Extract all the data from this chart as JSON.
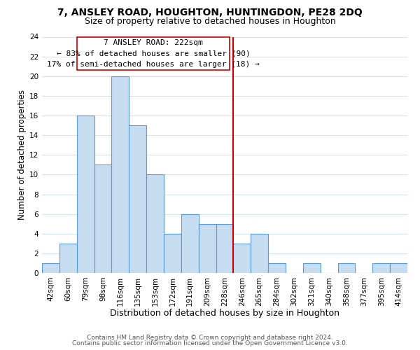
{
  "title": "7, ANSLEY ROAD, HOUGHTON, HUNTINGDON, PE28 2DQ",
  "subtitle": "Size of property relative to detached houses in Houghton",
  "xlabel": "Distribution of detached houses by size in Houghton",
  "ylabel": "Number of detached properties",
  "bar_labels": [
    "42sqm",
    "60sqm",
    "79sqm",
    "98sqm",
    "116sqm",
    "135sqm",
    "153sqm",
    "172sqm",
    "191sqm",
    "209sqm",
    "228sqm",
    "246sqm",
    "265sqm",
    "284sqm",
    "302sqm",
    "321sqm",
    "340sqm",
    "358sqm",
    "377sqm",
    "395sqm",
    "414sqm"
  ],
  "bar_values": [
    1,
    3,
    16,
    11,
    20,
    15,
    10,
    4,
    6,
    5,
    5,
    3,
    4,
    1,
    0,
    1,
    0,
    1,
    0,
    1,
    1
  ],
  "bar_color": "#c6dcf0",
  "bar_edge_color": "#5b9bd5",
  "grid_color": "#d0e4f5",
  "vline_color": "#cc0000",
  "annotation_line1": "7 ANSLEY ROAD: 222sqm",
  "annotation_line2": "← 83% of detached houses are smaller (90)",
  "annotation_line3": "17% of semi-detached houses are larger (18) →",
  "ylim": [
    0,
    24
  ],
  "yticks": [
    0,
    2,
    4,
    6,
    8,
    10,
    12,
    14,
    16,
    18,
    20,
    22,
    24
  ],
  "footer1": "Contains HM Land Registry data © Crown copyright and database right 2024.",
  "footer2": "Contains public sector information licensed under the Open Government Licence v3.0.",
  "title_fontsize": 10,
  "subtitle_fontsize": 9,
  "xlabel_fontsize": 9,
  "ylabel_fontsize": 8.5,
  "tick_fontsize": 7.5,
  "annotation_fontsize": 8,
  "footer_fontsize": 6.5
}
